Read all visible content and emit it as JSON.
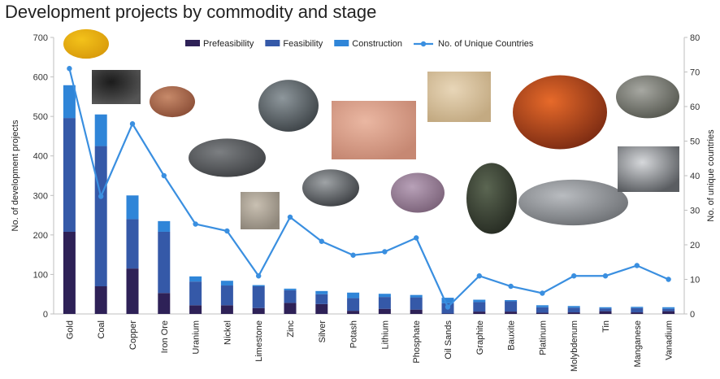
{
  "chart_data": {
    "type": "bar",
    "title": "Development projects by commodity and stage",
    "ylabel": "No. of development projects",
    "y2label": "No. of unique countries",
    "ylim": [
      0,
      700
    ],
    "y2lim": [
      0,
      80
    ],
    "yticks": [
      0,
      100,
      200,
      300,
      400,
      500,
      600,
      700
    ],
    "y2ticks": [
      0,
      10,
      20,
      30,
      40,
      50,
      60,
      70,
      80
    ],
    "stacked": true,
    "legend_position": "top",
    "categories": [
      "Gold",
      "Coal",
      "Copper",
      "Iron Ore",
      "Uranium",
      "Nickel",
      "Limestone",
      "Zinc",
      "Silver",
      "Potash",
      "Lithium",
      "Phosphate",
      "Oil Sands",
      "Graphite",
      "Bauxite",
      "Platinum",
      "Molybdenum",
      "Tin",
      "Manganese",
      "Vanadium"
    ],
    "series": [
      {
        "name": "Prefeasibility",
        "color": "#2e2157",
        "values": [
          208,
          70,
          115,
          53,
          22,
          22,
          15,
          28,
          25,
          8,
          13,
          11,
          1,
          6,
          6,
          3,
          4,
          7,
          4,
          7
        ]
      },
      {
        "name": "Feasibility",
        "color": "#3559a8",
        "values": [
          288,
          355,
          125,
          155,
          60,
          50,
          55,
          32,
          25,
          32,
          30,
          31,
          26,
          24,
          26,
          14,
          12,
          7,
          11,
          6
        ]
      },
      {
        "name": "Construction",
        "color": "#2f85d8",
        "values": [
          83,
          80,
          60,
          27,
          13,
          12,
          3,
          4,
          8,
          14,
          8,
          6,
          14,
          6,
          3,
          5,
          4,
          3,
          3,
          4
        ]
      }
    ],
    "line_series": {
      "name": "No. of Unique Countries",
      "color": "#3a8fe0",
      "axis": "secondary",
      "values": [
        71,
        34,
        55,
        40,
        26,
        24,
        11,
        28,
        21,
        17,
        18,
        22,
        2,
        11,
        8,
        6,
        11,
        11,
        14,
        10
      ]
    },
    "images": [
      {
        "commodity": "Gold",
        "icon": "gold-nugget-photo",
        "colors": [
          "#f3c21a",
          "#d89a0b"
        ]
      },
      {
        "commodity": "Coal",
        "icon": "coal-photo",
        "colors": [
          "#1b1b1b",
          "#555555"
        ]
      },
      {
        "commodity": "Copper",
        "icon": "copper-ore-photo",
        "colors": [
          "#c78a6a",
          "#8a4d36"
        ]
      },
      {
        "commodity": "Iron Ore",
        "icon": "iron-ore-photo",
        "colors": [
          "#7c7f82",
          "#3f4144"
        ]
      },
      {
        "commodity": "Limestone",
        "icon": "limestone-photo",
        "colors": [
          "#c9c0b2",
          "#8f877b"
        ]
      },
      {
        "commodity": "Zinc",
        "icon": "zinc-ore-photo",
        "colors": [
          "#8e979c",
          "#3c4246"
        ]
      },
      {
        "commodity": "Silver",
        "icon": "silver-ore-photo",
        "colors": [
          "#9fa3a6",
          "#3b3e42"
        ]
      },
      {
        "commodity": "Potash",
        "icon": "potash-photo",
        "colors": [
          "#eab7a2",
          "#c68873"
        ]
      },
      {
        "commodity": "Lithium",
        "icon": "lithium-mineral-photo",
        "colors": [
          "#b8a1b8",
          "#7a6178"
        ]
      },
      {
        "commodity": "Phosphate",
        "icon": "phosphate-photo",
        "colors": [
          "#e8d6b8",
          "#c3aa82"
        ]
      },
      {
        "commodity": "Graphite",
        "icon": "graphite-photo",
        "colors": [
          "#5b6652",
          "#262b22"
        ]
      },
      {
        "commodity": "Bauxite",
        "icon": "bauxite-photo",
        "colors": [
          "#e76a2a",
          "#7a2a12"
        ]
      },
      {
        "commodity": "Platinum",
        "icon": "platinum-ore-photo",
        "colors": [
          "#b9bcc0",
          "#6d7074"
        ]
      },
      {
        "commodity": "Manganese",
        "icon": "manganese-ore-photo",
        "colors": [
          "#a7a8a2",
          "#55574f"
        ]
      },
      {
        "commodity": "Vanadium",
        "icon": "vanadium-crystal-photo",
        "colors": [
          "#d6d8db",
          "#5a5d61"
        ]
      }
    ]
  }
}
